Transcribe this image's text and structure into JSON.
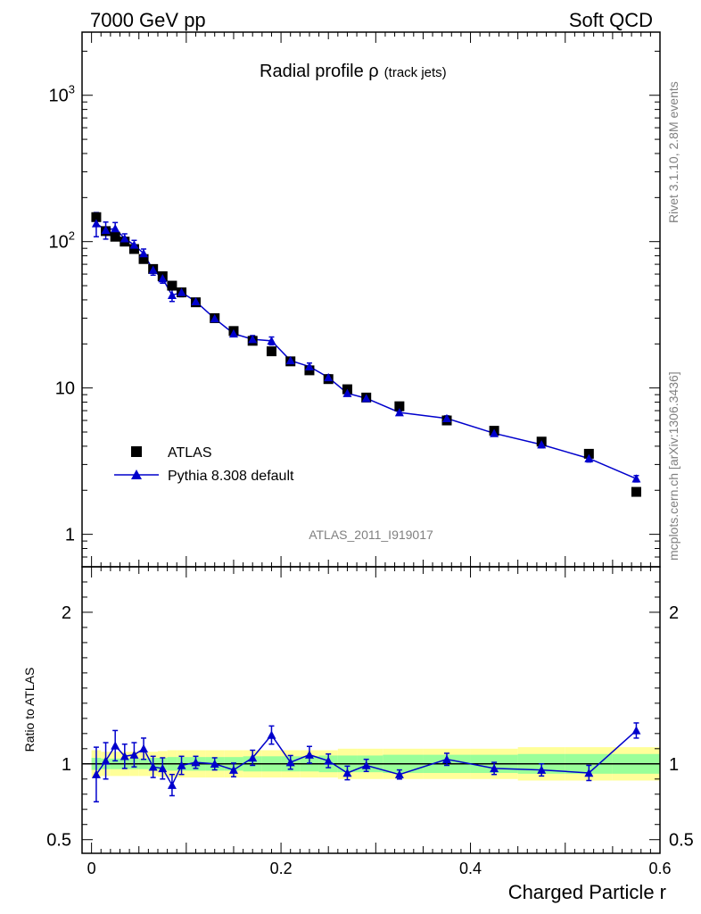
{
  "header": {
    "energy": "7000 GeV pp",
    "process": "Soft QCD"
  },
  "side": {
    "rivet": "Rivet 3.1.10,  2.8M events",
    "mcplots": "mcplots.cern.ch [arXiv:1306.3436]"
  },
  "chart_data": {
    "type": "scatter",
    "title": "Radial profile ρ",
    "title_suffix": "(track jets)",
    "analysis": "ATLAS_2011_I919017",
    "xlabel": "Charged Particle r",
    "ylabel": "",
    "ratio_ylabel": "Ratio to ATLAS",
    "xlim": [
      -0.01,
      0.6
    ],
    "ylim": [
      0.6,
      2700
    ],
    "yscale": "log",
    "ratio_ylim": [
      0.41,
      2.3
    ],
    "x_ticks": [
      "0",
      "0.2",
      "0.4",
      "0.6"
    ],
    "main_y_ticks": [
      {
        "v": 1,
        "label": "1"
      },
      {
        "v": 10,
        "label": "10"
      },
      {
        "v": 100,
        "base": "10",
        "exp": "2"
      },
      {
        "v": 1000,
        "base": "10",
        "exp": "3"
      }
    ],
    "ratio_y_ticks": [
      {
        "v": 0.5,
        "label": "0.5"
      },
      {
        "v": 1,
        "label": "1"
      },
      {
        "v": 2,
        "label": "2"
      }
    ],
    "legend_position": "bottom-left",
    "x": [
      0.005,
      0.015,
      0.025,
      0.035,
      0.045,
      0.055,
      0.065,
      0.075,
      0.085,
      0.095,
      0.11,
      0.13,
      0.15,
      0.17,
      0.19,
      0.21,
      0.23,
      0.25,
      0.27,
      0.29,
      0.325,
      0.375,
      0.425,
      0.475,
      0.525,
      0.575
    ],
    "series": [
      {
        "name": "ATLAS",
        "color": "#000000",
        "marker": "square",
        "values": [
          147,
          118,
          108,
          100,
          89,
          76,
          65,
          58,
          50,
          45,
          38.5,
          30,
          24.5,
          21,
          17.8,
          15.2,
          13.2,
          11.5,
          9.8,
          8.6,
          7.5,
          6.0,
          5.1,
          4.3,
          3.55,
          1.95
        ],
        "band_stat": [
          0.04,
          0.035,
          0.035,
          0.035,
          0.035,
          0.035,
          0.04,
          0.04,
          0.045,
          0.045,
          0.045,
          0.045,
          0.045,
          0.05,
          0.05,
          0.05,
          0.05,
          0.055,
          0.055,
          0.055,
          0.06,
          0.06,
          0.06,
          0.065,
          0.065,
          0.065
        ],
        "band_total": [
          0.09,
          0.08,
          0.08,
          0.08,
          0.08,
          0.08,
          0.08,
          0.085,
          0.09,
          0.09,
          0.09,
          0.09,
          0.09,
          0.09,
          0.09,
          0.09,
          0.09,
          0.09,
          0.1,
          0.1,
          0.1,
          0.1,
          0.1,
          0.11,
          0.11,
          0.11
        ]
      },
      {
        "name": "Pythia 8.308 default",
        "color": "#0000cc",
        "marker": "triangle",
        "values": [
          133,
          120,
          123,
          105,
          95,
          83,
          64,
          56,
          43,
          45,
          39,
          29.8,
          23.5,
          21.5,
          21,
          15.4,
          14,
          11.8,
          9.2,
          8.5,
          6.8,
          6.2,
          4.9,
          4.1,
          3.3,
          2.4
        ],
        "errors": [
          25,
          16,
          12,
          8,
          7,
          6,
          5,
          4,
          4,
          3,
          1.2,
          1,
          1.1,
          1.3,
          1.3,
          0.7,
          0.8,
          0.5,
          0.4,
          0.35,
          0.15,
          0.25,
          0.2,
          0.2,
          0.18,
          0.12
        ],
        "ratio": [
          0.93,
          1.02,
          1.12,
          1.05,
          1.06,
          1.1,
          0.98,
          0.97,
          0.86,
          0.99,
          1.01,
          1.0,
          0.96,
          1.04,
          1.19,
          1.01,
          1.06,
          1.02,
          0.94,
          0.99,
          0.93,
          1.03,
          0.97,
          0.96,
          0.94,
          1.22
        ],
        "ratio_errors": [
          0.18,
          0.12,
          0.1,
          0.08,
          0.08,
          0.07,
          0.07,
          0.07,
          0.07,
          0.06,
          0.04,
          0.04,
          0.045,
          0.05,
          0.06,
          0.045,
          0.055,
          0.045,
          0.045,
          0.04,
          0.03,
          0.04,
          0.04,
          0.04,
          0.05,
          0.05
        ]
      }
    ]
  }
}
